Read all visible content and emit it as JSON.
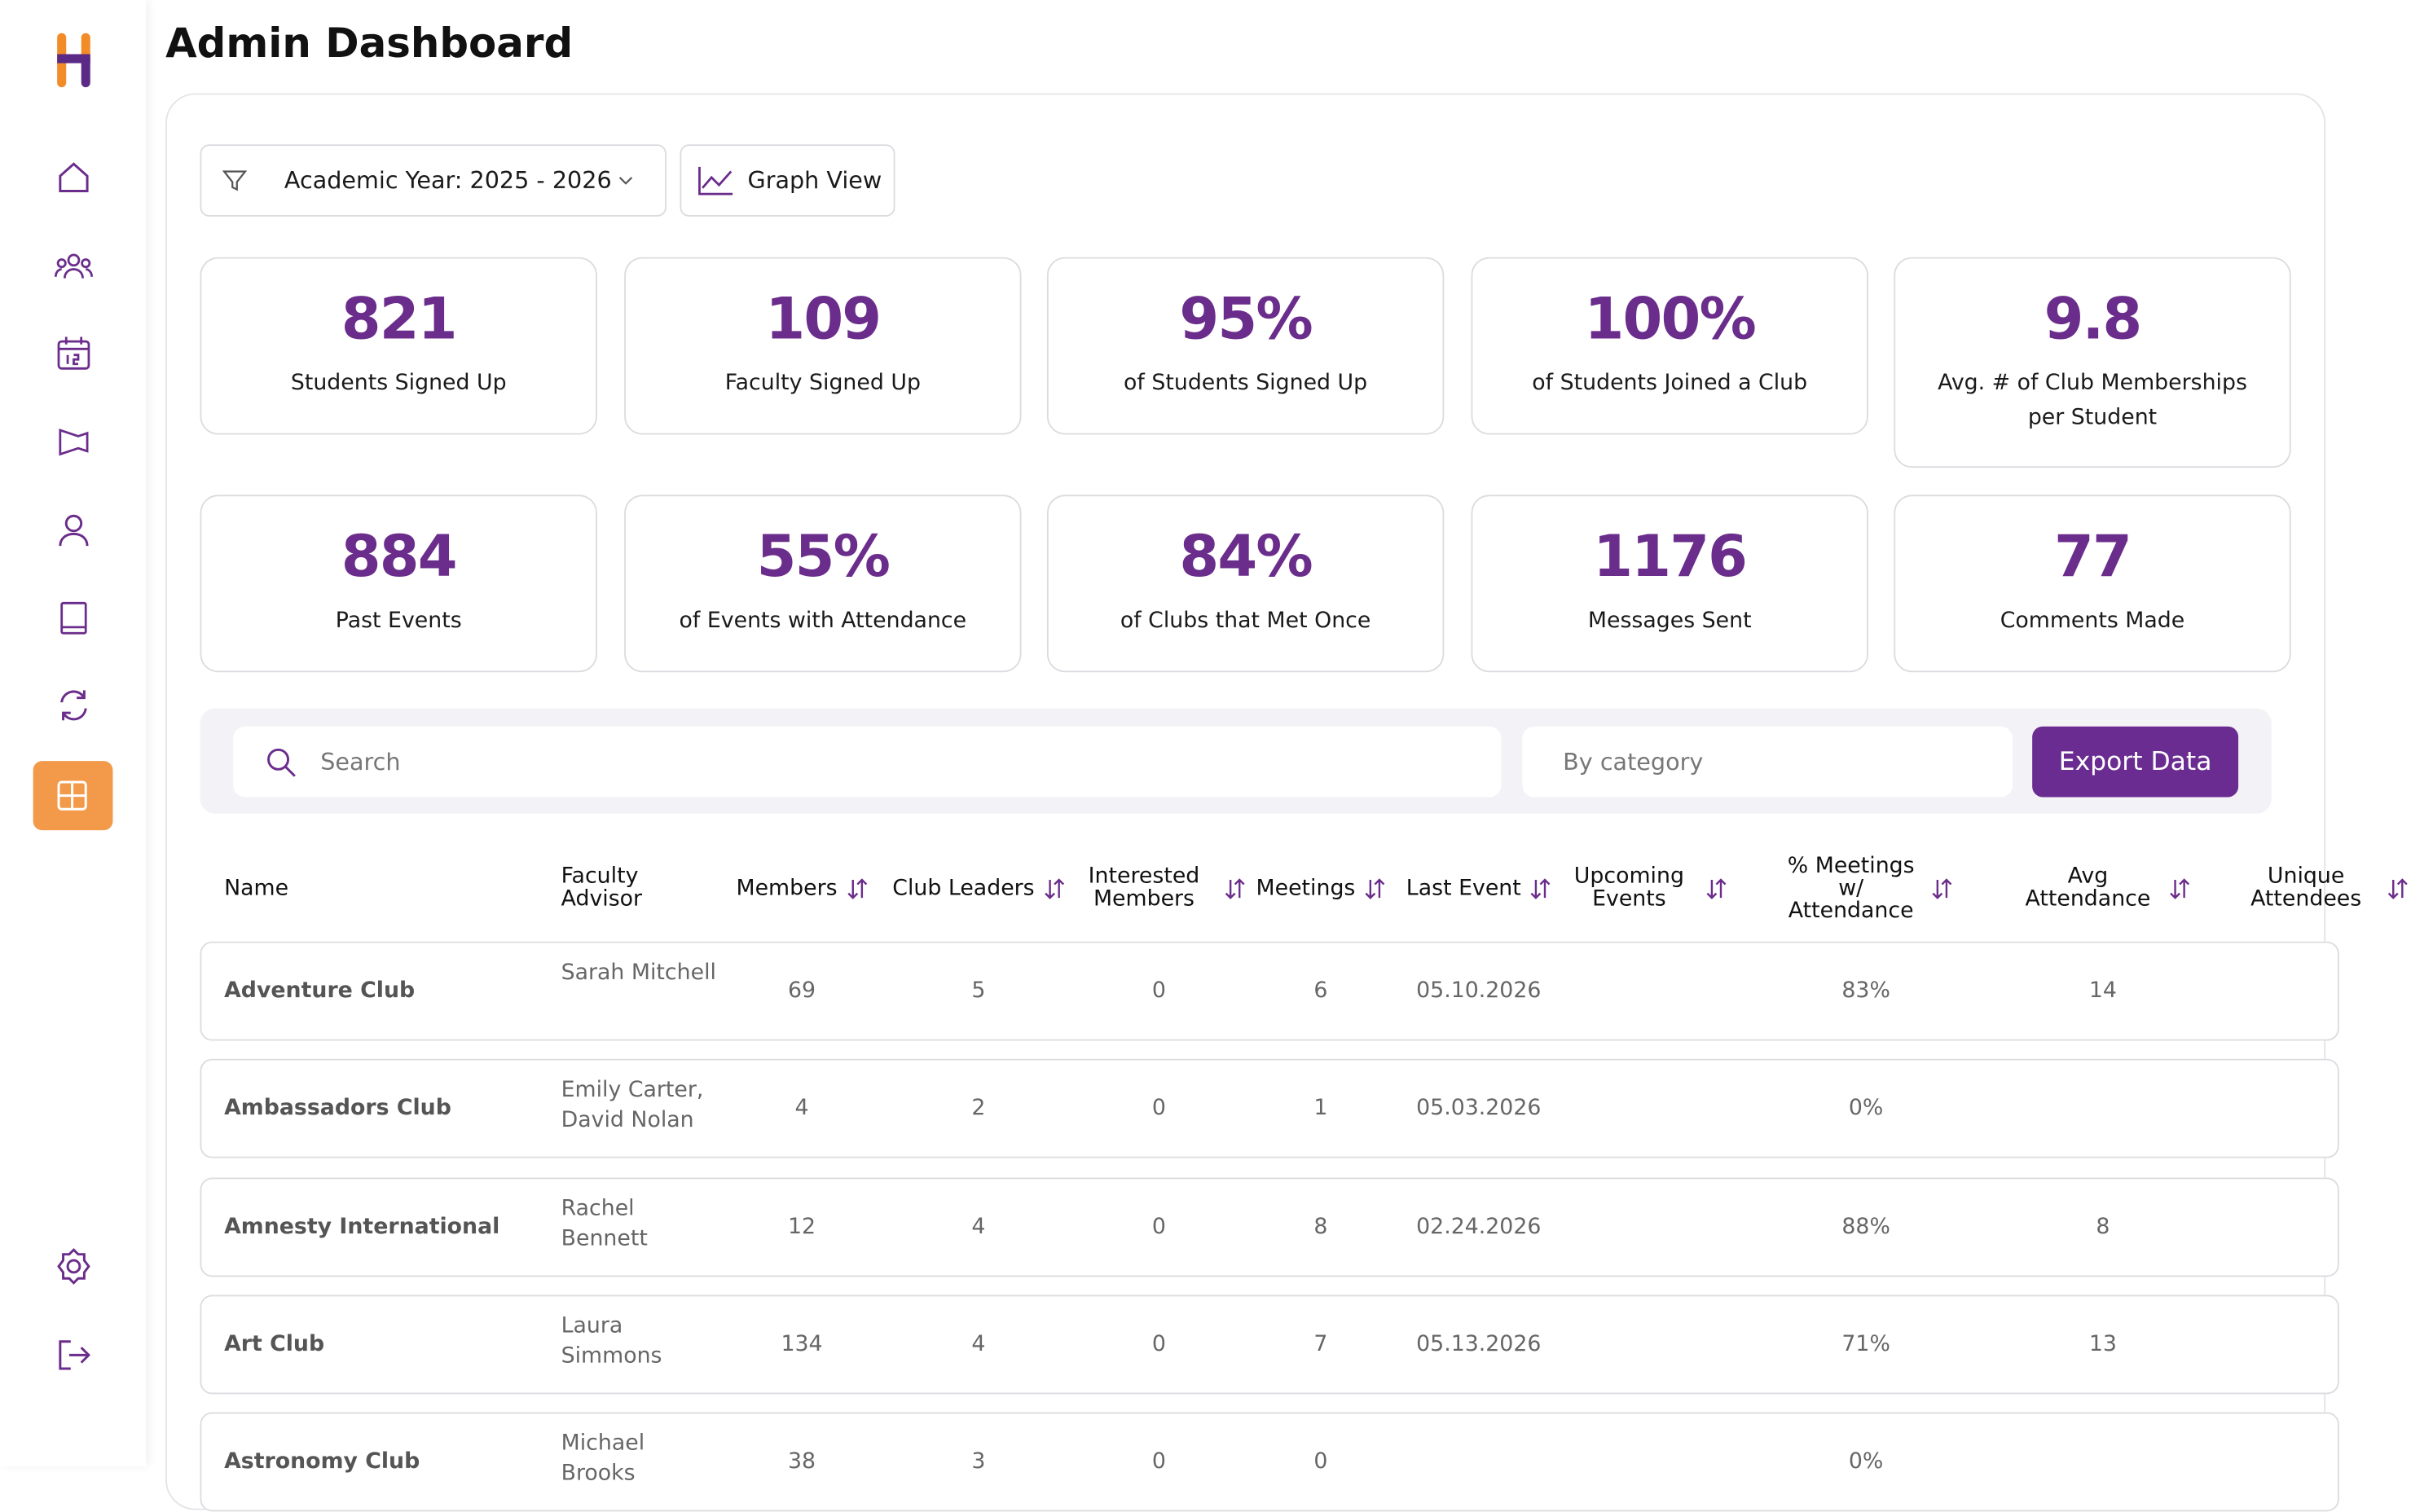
{
  "header": {
    "title": "Admin Dashboard"
  },
  "filters": {
    "academic_year": "Academic Year: 2025 - 2026",
    "graph_view": "Graph View"
  },
  "stats": [
    {
      "value": "821",
      "label": "Students Signed Up"
    },
    {
      "value": "109",
      "label": "Faculty Signed Up"
    },
    {
      "value": "95%",
      "label": "of Students Signed Up"
    },
    {
      "value": "100%",
      "label": "of Students Joined a Club"
    },
    {
      "value": "9.8",
      "label": "Avg. # of Club Memberships per Student"
    },
    {
      "value": "884",
      "label": "Past Events"
    },
    {
      "value": "55%",
      "label": "of Events with Attendance"
    },
    {
      "value": "84%",
      "label": "of Clubs that Met Once"
    },
    {
      "value": "1176",
      "label": "Messages Sent"
    },
    {
      "value": "77",
      "label": "Comments Made"
    }
  ],
  "toolbar": {
    "search_placeholder": "Search",
    "category_placeholder": "By category",
    "export": "Export Data"
  },
  "table": {
    "columns": [
      {
        "label": "Name",
        "sortable": false
      },
      {
        "label": "Faculty Advisor",
        "sortable": false
      },
      {
        "label": "Members",
        "sortable": true
      },
      {
        "label": "Club Leaders",
        "sortable": true
      },
      {
        "label": "Interested Members",
        "sortable": true
      },
      {
        "label": "Meetings",
        "sortable": true
      },
      {
        "label": "Last Event",
        "sortable": true
      },
      {
        "label": "Upcoming Events",
        "sortable": true
      },
      {
        "label": "% Meetings w/ Attendance",
        "sortable": true
      },
      {
        "label": "Avg Attendance",
        "sortable": true
      },
      {
        "label": "Unique Attendees",
        "sortable": true
      }
    ],
    "rows": [
      [
        "Adventure Club",
        "Sarah Mitchell",
        69,
        5,
        0,
        6,
        "05.10.2026",
        null,
        "83%",
        14,
        null
      ],
      [
        "Ambassadors Club",
        "Emily Carter, David Nolan",
        4,
        2,
        0,
        1,
        "05.03.2026",
        null,
        "0%",
        null,
        null
      ],
      [
        "Amnesty International",
        "Rachel Bennett",
        12,
        4,
        0,
        8,
        "02.24.2026",
        null,
        "88%",
        8,
        null
      ],
      [
        "Art Club",
        "Laura Simmons",
        134,
        4,
        0,
        7,
        "05.13.2026",
        null,
        "71%",
        13,
        null
      ],
      [
        "Astronomy Club",
        "Michael Brooks",
        38,
        3,
        0,
        0,
        null,
        null,
        "0%",
        null,
        null
      ]
    ]
  }
}
